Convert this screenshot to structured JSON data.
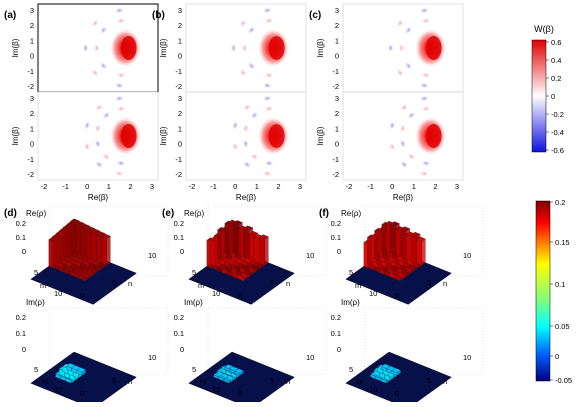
{
  "panels": {
    "wigner": [
      {
        "letter": "(a)",
        "lobes_top": 5,
        "lobes_bottom": 6
      },
      {
        "letter": "(b)",
        "lobes_top": 5,
        "lobes_bottom": 6
      },
      {
        "letter": "(c)",
        "lobes_top": 5,
        "lobes_bottom": 6
      }
    ],
    "density": [
      {
        "letter": "(d)",
        "re_heights": [
          0.133,
          0.131,
          0.129,
          0.127,
          0.125,
          0.123,
          0.121
        ],
        "im_peak": 0.03
      },
      {
        "letter": "(e)",
        "re_heights": [
          0.128,
          0.135,
          0.12,
          0.13,
          0.115,
          0.11,
          0.118
        ],
        "im_peak": 0.02
      },
      {
        "letter": "(f)",
        "re_heights": [
          0.122,
          0.13,
          0.118,
          0.126,
          0.112,
          0.12,
          0.108
        ],
        "im_peak": 0.025
      }
    ]
  },
  "wigner_axes": {
    "xlabel": "Re(β)",
    "ylabel": "Im(β)",
    "xticks": [
      "-2",
      "-1",
      "0",
      "1",
      "2",
      "3"
    ],
    "yticks": [
      "3",
      "2",
      "1",
      "0",
      "-1",
      "-2"
    ]
  },
  "rho_axes": {
    "re_label": "Re(ρ)",
    "im_label": "Im(ρ)",
    "re_ticks": [
      "0.2",
      "0.1",
      "0"
    ],
    "im_ticks": [
      "0.2",
      "0.1",
      "0"
    ],
    "m_label": "m",
    "n_label": "n",
    "m_ticks": [
      "5",
      "10"
    ],
    "n_ticks": [
      "0",
      "5",
      "10"
    ],
    "zero_label": "0"
  },
  "colorbar_w": {
    "title": "W(β)",
    "ticks": [
      "0.6",
      "0.4",
      "0.2",
      "0",
      "-0.2",
      "-0.4",
      "-0.6"
    ],
    "colors": {
      "pos": "#e00000",
      "mid": "#ffffff",
      "neg": "#1010e0"
    }
  },
  "colorbar_rho": {
    "ticks": [
      "0.2",
      "0.15",
      "0.1",
      "0.05",
      "0",
      "-0.05"
    ],
    "colormap": "jet"
  }
}
